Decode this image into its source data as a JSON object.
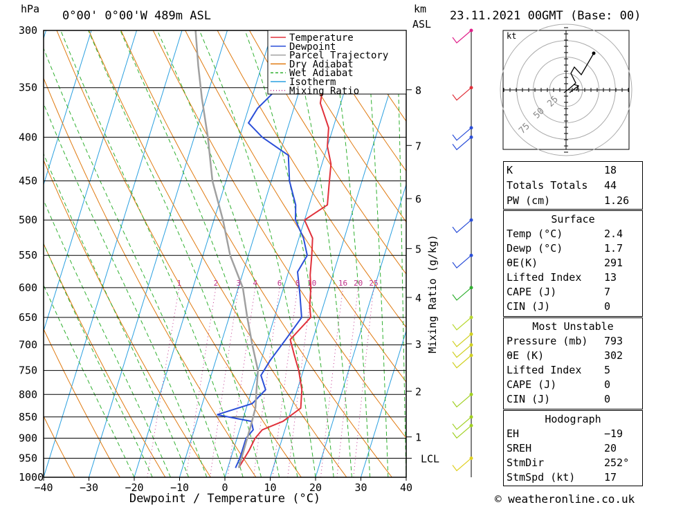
{
  "header": {
    "pressure_unit": "hPa",
    "location": "0°00' 0°00'W 489m ASL",
    "height_unit": "km",
    "height_ref": "ASL",
    "datetime": "23.11.2021 00GMT (Base: 00)"
  },
  "footer": {
    "credit": "© weatheronline.co.uk"
  },
  "chart_data": {
    "type": "line",
    "title": "",
    "xlabel": "Dewpoint / Temperature (°C)",
    "ylabel": "hPa",
    "right_label": "Mixing Ratio (g/kg)",
    "x_ticks": [
      -40,
      -30,
      -20,
      -10,
      0,
      10,
      20,
      30,
      40
    ],
    "x_tick_labels": [
      "−40",
      "−30",
      "−20",
      "−10",
      "0",
      "10",
      "20",
      "30",
      "40"
    ],
    "y_ticks": [
      300,
      350,
      400,
      450,
      500,
      550,
      600,
      650,
      700,
      750,
      800,
      850,
      900,
      950,
      1000
    ],
    "xlim": [
      -40,
      40
    ],
    "ylim": [
      1000,
      300
    ],
    "y_scale": "log",
    "legend": [
      "Temperature",
      "Dewpoint",
      "Parcel Trajectory",
      "Dry Adiabat",
      "Wet Adiabat",
      "Isotherm",
      "Mixing Ratio"
    ],
    "legend_colors": [
      "#e0303a",
      "#2a4ed8",
      "#a0a0a0",
      "#e07a10",
      "#30b030",
      "#2aa0e0",
      "#c0308a"
    ],
    "km_labels": [
      {
        "label": "8",
        "p": 352
      },
      {
        "label": "7",
        "p": 409
      },
      {
        "label": "6",
        "p": 472
      },
      {
        "label": "5",
        "p": 540
      },
      {
        "label": "4",
        "p": 616
      },
      {
        "label": "3",
        "p": 698
      },
      {
        "label": "2",
        "p": 793
      },
      {
        "label": "1",
        "p": 897
      },
      {
        "label": "LCL",
        "p": 950
      }
    ],
    "mixing_ratio_labels": [
      "1",
      "2",
      "3",
      "4",
      "6",
      "8",
      "10",
      "16",
      "20",
      "25"
    ],
    "series": [
      {
        "name": "Temperature",
        "color": "#e0303a",
        "points": [
          [
            -10,
            300
          ],
          [
            -8,
            330
          ],
          [
            -5,
            350
          ],
          [
            -4.5,
            365
          ],
          [
            -1,
            390
          ],
          [
            0,
            410
          ],
          [
            2,
            430
          ],
          [
            3,
            455
          ],
          [
            4,
            480
          ],
          [
            0,
            500
          ],
          [
            3,
            525
          ],
          [
            4,
            550
          ],
          [
            5,
            580
          ],
          [
            6,
            600
          ],
          [
            7,
            630
          ],
          [
            8,
            650
          ],
          [
            5,
            690
          ],
          [
            7,
            720
          ],
          [
            9,
            750
          ],
          [
            11,
            790
          ],
          [
            12,
            830
          ],
          [
            9,
            860
          ],
          [
            5,
            880
          ],
          [
            4,
            900
          ],
          [
            3.5,
            930
          ],
          [
            3,
            950
          ],
          [
            2.4,
            975
          ]
        ]
      },
      {
        "name": "Dewpoint",
        "color": "#2a4ed8",
        "points": [
          [
            -19,
            300
          ],
          [
            -19,
            320
          ],
          [
            -14,
            345
          ],
          [
            -18,
            370
          ],
          [
            -19,
            385
          ],
          [
            -15,
            400
          ],
          [
            -8,
            420
          ],
          [
            -6,
            450
          ],
          [
            -3,
            480
          ],
          [
            -2,
            500
          ],
          [
            1,
            525
          ],
          [
            3,
            550
          ],
          [
            2,
            575
          ],
          [
            4,
            610
          ],
          [
            6,
            650
          ],
          [
            4,
            690
          ],
          [
            2,
            730
          ],
          [
            1,
            760
          ],
          [
            3,
            790
          ],
          [
            1,
            820
          ],
          [
            -6,
            845
          ],
          [
            2,
            860
          ],
          [
            3,
            880
          ],
          [
            2,
            900
          ],
          [
            2,
            930
          ],
          [
            2,
            950
          ],
          [
            1.7,
            975
          ]
        ]
      },
      {
        "name": "Parcel Trajectory",
        "color": "#a0a0a0",
        "points": [
          [
            -37,
            300
          ],
          [
            -34,
            330
          ],
          [
            -31,
            360
          ],
          [
            -27,
            400
          ],
          [
            -23,
            450
          ],
          [
            -18,
            500
          ],
          [
            -14,
            550
          ],
          [
            -9,
            600
          ],
          [
            -6,
            650
          ],
          [
            -3,
            700
          ],
          [
            0,
            750
          ],
          [
            1,
            790
          ],
          [
            2,
            830
          ],
          [
            2.2,
            870
          ],
          [
            2.3,
            920
          ],
          [
            2.4,
            975
          ]
        ]
      }
    ]
  },
  "hodograph": {
    "unit": "kt",
    "ring_labels": [
      "25",
      "50",
      "75"
    ]
  },
  "indices": {
    "rows": [
      {
        "k": "K",
        "v": "18"
      },
      {
        "k": "Totals Totals",
        "v": "44"
      },
      {
        "k": "PW (cm)",
        "v": "1.26"
      }
    ]
  },
  "surface": {
    "title": "Surface",
    "rows": [
      {
        "k": "Temp (°C)",
        "v": "2.4"
      },
      {
        "k": "Dewp (°C)",
        "v": "1.7"
      },
      {
        "k": "θE(K)",
        "v": "291"
      },
      {
        "k": "Lifted Index",
        "v": "13"
      },
      {
        "k": "CAPE (J)",
        "v": "7"
      },
      {
        "k": "CIN (J)",
        "v": "0"
      }
    ]
  },
  "most_unstable": {
    "title": "Most Unstable",
    "rows": [
      {
        "k": "Pressure (mb)",
        "v": "793"
      },
      {
        "k": "θE (K)",
        "v": "302"
      },
      {
        "k": "Lifted Index",
        "v": "5"
      },
      {
        "k": "CAPE (J)",
        "v": "0"
      },
      {
        "k": "CIN (J)",
        "v": "0"
      }
    ]
  },
  "hodograph_box": {
    "title": "Hodograph",
    "rows": [
      {
        "k": "EH",
        "v": "−19"
      },
      {
        "k": "SREH",
        "v": "20"
      },
      {
        "k": "StmDir",
        "v": "252°"
      },
      {
        "k": "StmSpd (kt)",
        "v": "17"
      }
    ]
  }
}
